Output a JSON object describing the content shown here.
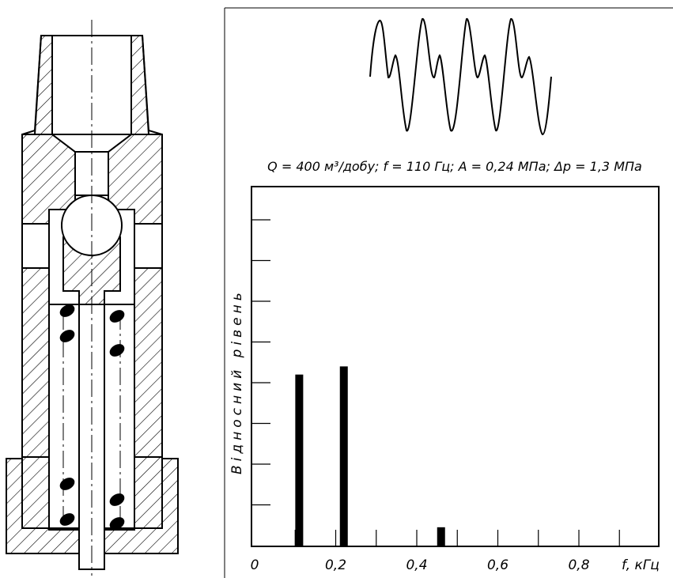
{
  "caption": "Q = 400 м³/добу; f = 110 Гц; A = 0,24 МПа; Δp = 1,3 МПа",
  "chart_data": {
    "type": "bar",
    "ylabel": "Відносний  рівень",
    "xlabel": "f, кГц",
    "x_ticks": [
      "0",
      "0,2",
      "0,4",
      "0,6",
      "0,8"
    ],
    "xlim": [
      0,
      0.9
    ],
    "ylim": [
      0,
      9
    ],
    "values": [
      {
        "x": 0.11,
        "y": 4.2
      },
      {
        "x": 0.22,
        "y": 4.4
      },
      {
        "x": 0.46,
        "y": 0.45
      }
    ]
  }
}
